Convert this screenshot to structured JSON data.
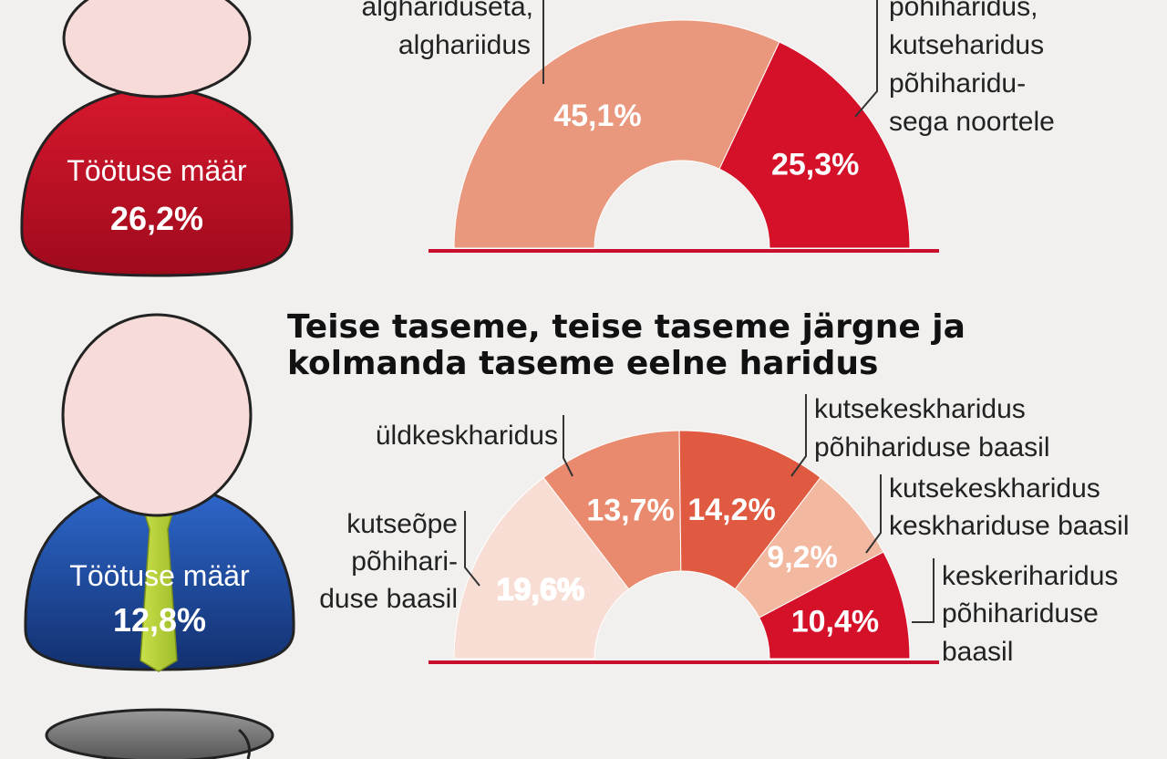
{
  "figures": [
    {
      "badge_label": "Töötuse määr",
      "badge_value": "26,2%",
      "color": "#c8102e"
    },
    {
      "badge_label": "Töötuse määr",
      "badge_value": "12,8%",
      "color": "#1f4ea8"
    }
  ],
  "chart_data": [
    {
      "type": "pie",
      "title": "",
      "categories": [
        "alghariduseta, algharidus",
        "põhiharidus, kutseharidus põhiharidu-sega noortele"
      ],
      "values": [
        45.1,
        25.3
      ],
      "value_labels": [
        "45,1%",
        "25,3%"
      ],
      "category_lines": [
        [
          "alghariduseta,",
          "alghariidus"
        ],
        [
          "põhiharidus,",
          "kutseharidus",
          "põhiharidu-",
          "sega noortele"
        ]
      ],
      "colors": [
        "#e9987d",
        "#d41128"
      ]
    },
    {
      "type": "pie",
      "title": "Teise taseme, teise taseme järgne ja kolmanda taseme eelne haridus",
      "title_lines": [
        "Teise taseme, teise taseme järgne ja",
        "kolmanda taseme eelne haridus"
      ],
      "categories": [
        "kutseõpe põhihariduse baasil",
        "üldkeskharidus",
        "kutsekeskharidus põhihariduse baasil",
        "kutsekeskharidus keskhariduse baasil",
        "keskeriharidus põhihariduse baasil"
      ],
      "values": [
        19.6,
        13.7,
        14.2,
        9.2,
        10.4
      ],
      "value_labels": [
        "19,6%",
        "13,7%",
        "14,2%",
        "9,2%",
        "10,4%"
      ],
      "category_lines": [
        [
          "kutseõpe",
          "põhihari-",
          "duse baasil"
        ],
        [
          "üldkeskharidus"
        ],
        [
          "kutsekeskharidus",
          "põhihariduse baasil"
        ],
        [
          "kutsekeskharidus",
          "keskhariduse baasil"
        ],
        [
          "keskeriharidus",
          "põhihariduse",
          "baasil"
        ]
      ],
      "colors": [
        "#f7ddd3",
        "#e98a6e",
        "#df5a40",
        "#f2b8a0",
        "#d41128"
      ],
      "value_label_colors": [
        "#c8102e",
        "#ffffff",
        "#ffffff",
        "#ffffff",
        "#ffffff"
      ]
    }
  ]
}
